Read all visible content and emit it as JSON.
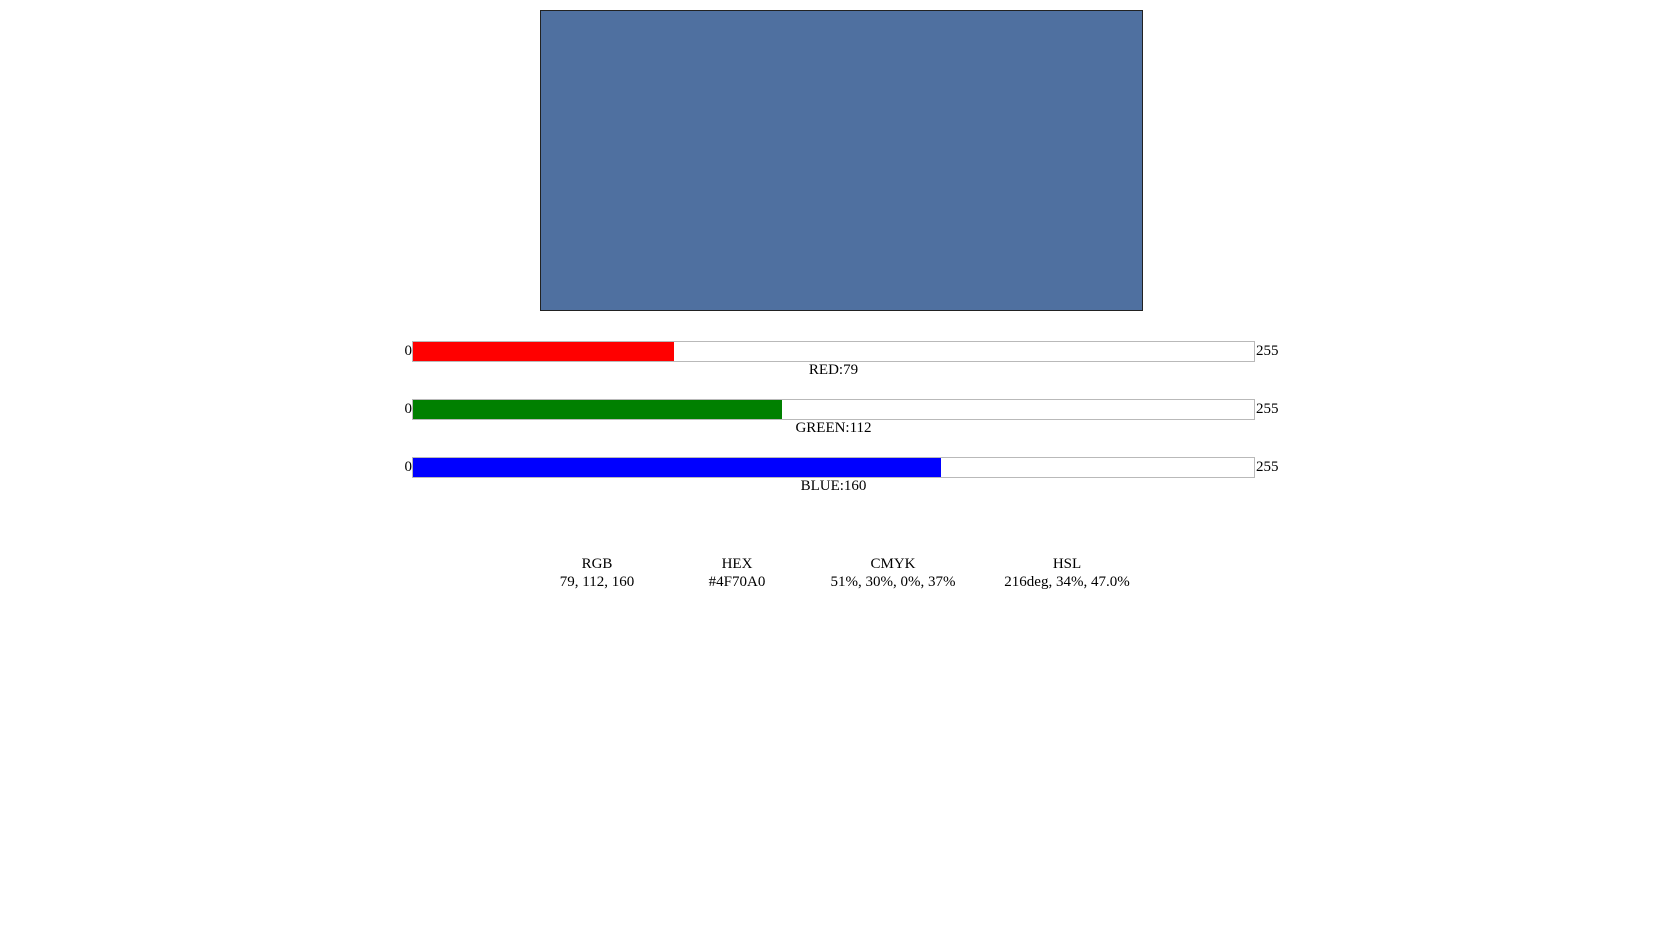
{
  "color": {
    "swatch_hex": "#4F70A0"
  },
  "sliders": [
    {
      "id": "red",
      "min_label": "0",
      "max_label": "255",
      "caption": "RED:79",
      "value": 79,
      "max": 255,
      "fill_color": "#ff0000"
    },
    {
      "id": "green",
      "min_label": "0",
      "max_label": "255",
      "caption": "GREEN:112",
      "value": 112,
      "max": 255,
      "fill_color": "#008000"
    },
    {
      "id": "blue",
      "min_label": "0",
      "max_label": "255",
      "caption": "BLUE:160",
      "value": 160,
      "max": 255,
      "fill_color": "#0000ff"
    }
  ],
  "formats": {
    "rgb": {
      "label": "RGB",
      "value": "79, 112, 160"
    },
    "hex": {
      "label": "HEX",
      "value": "#4F70A0"
    },
    "cmyk": {
      "label": "CMYK",
      "value": "51%, 30%, 0%, 37%"
    },
    "hsl": {
      "label": "HSL",
      "value": "216deg, 34%, 47.0%"
    }
  }
}
